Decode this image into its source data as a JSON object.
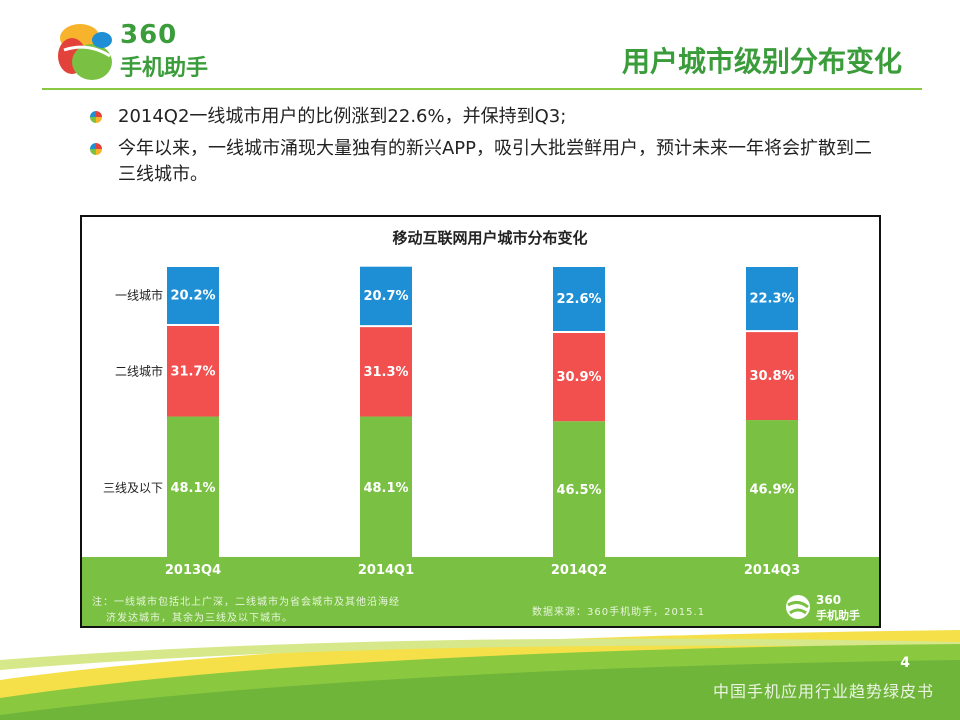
{
  "brand": {
    "logo_line1": "360",
    "logo_line2": "手机助手"
  },
  "page_title": "用户城市级别分布变化",
  "bullets": [
    "2014Q2一线城市用户的比例涨到22.6%，并保持到Q3;",
    "今年以来，一线城市涌现大量独有的新兴APP，吸引大批尝鲜用户，预计未来一年将会扩散到二三线城市。"
  ],
  "chart_data": {
    "type": "bar",
    "stacked": true,
    "title": "移动互联网用户城市分布变化",
    "categories": [
      "2013Q4",
      "2014Q1",
      "2014Q2",
      "2014Q3"
    ],
    "series": [
      {
        "name": "三线及以下",
        "values": [
          48.1,
          48.1,
          46.5,
          46.9
        ],
        "labels": [
          "48.1%",
          "48.1%",
          "46.5%",
          "46.9%"
        ],
        "color": "#7ac143"
      },
      {
        "name": "二线城市",
        "values": [
          31.7,
          31.3,
          30.9,
          30.8
        ],
        "labels": [
          "31.7%",
          "31.3%",
          "30.9%",
          "30.8%"
        ],
        "color": "#f1504f"
      },
      {
        "name": "一线城市",
        "values": [
          20.2,
          20.7,
          22.6,
          22.3
        ],
        "labels": [
          "20.2%",
          "20.7%",
          "22.6%",
          "22.3%"
        ],
        "color": "#1e8fd5"
      }
    ],
    "ylim": [
      0,
      100
    ],
    "grid": false
  },
  "chart_footer": {
    "note_line1": "注：一线城市包括北上广深，二线城市为省会城市及其他沿海经",
    "note_line2": "济发达城市，其余为三线及以下城市。",
    "source": "数据来源：360手机助手，2015.1",
    "mini_logo_line1": "360",
    "mini_logo_line2": "手机助手"
  },
  "page_number": "4",
  "watermark": "中国手机应用行业趋势绿皮书",
  "colors": {
    "brand_green": "#3a9c3a",
    "accent_green": "#7ac143",
    "red": "#f1504f",
    "blue": "#1e8fd5"
  }
}
